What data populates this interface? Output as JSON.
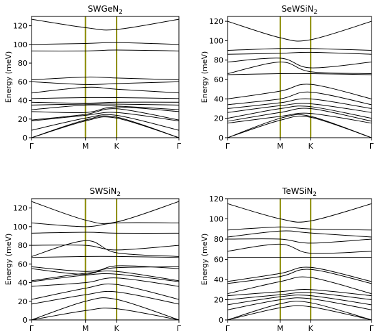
{
  "chart_data": [
    {
      "type": "line",
      "title": "SWGeN",
      "title_subscript": "2",
      "ylabel": "Energy (meV)",
      "ylim": [
        0,
        130
      ],
      "yticks": [
        0,
        20,
        40,
        60,
        80,
        100,
        120
      ],
      "xticklabels": [
        "Γ",
        "M",
        "K",
        "Γ"
      ],
      "x": [
        0,
        1,
        1.577,
        2.732
      ],
      "series": [
        {
          "values": [
            0,
            18,
            21,
            0
          ]
        },
        {
          "values": [
            0,
            19,
            22,
            0
          ]
        },
        {
          "values": [
            8,
            21,
            24,
            8
          ]
        },
        {
          "values": [
            18,
            24,
            27,
            18
          ]
        },
        {
          "values": [
            19,
            25,
            31,
            19
          ]
        },
        {
          "values": [
            28,
            27,
            33,
            28
          ]
        },
        {
          "values": [
            30,
            35,
            34,
            30
          ]
        },
        {
          "values": [
            35,
            36,
            36,
            35
          ]
        },
        {
          "values": [
            38,
            37,
            38,
            38
          ]
        },
        {
          "values": [
            42,
            43,
            43,
            42
          ]
        },
        {
          "values": [
            48,
            54,
            52,
            48
          ]
        },
        {
          "values": [
            60,
            57,
            58,
            60
          ]
        },
        {
          "values": [
            62,
            65,
            64,
            62
          ]
        },
        {
          "values": [
            93,
            93,
            94,
            93
          ]
        },
        {
          "values": [
            100,
            101,
            102,
            100
          ]
        },
        {
          "values": [
            127,
            118,
            116,
            127
          ]
        }
      ]
    },
    {
      "type": "line",
      "title": "SeWSiN",
      "title_subscript": "2",
      "ylabel": "Energy (meV)",
      "ylim": [
        0,
        125
      ],
      "yticks": [
        0,
        20,
        40,
        60,
        80,
        100,
        120
      ],
      "xticklabels": [
        "Γ",
        "M",
        "K",
        "Γ"
      ],
      "x": [
        0,
        1,
        1.577,
        2.732
      ],
      "series": [
        {
          "values": [
            0,
            18,
            21,
            0
          ]
        },
        {
          "values": [
            0,
            20,
            22,
            0
          ]
        },
        {
          "values": [
            15,
            22,
            25,
            15
          ]
        },
        {
          "values": [
            17,
            26,
            30,
            17
          ]
        },
        {
          "values": [
            20,
            30,
            32,
            20
          ]
        },
        {
          "values": [
            26,
            33,
            35,
            26
          ]
        },
        {
          "values": [
            30,
            36,
            40,
            30
          ]
        },
        {
          "values": [
            34,
            40,
            47,
            34
          ]
        },
        {
          "values": [
            40,
            48,
            55,
            40
          ]
        },
        {
          "values": [
            65,
            66,
            66,
            65
          ]
        },
        {
          "values": [
            66,
            78,
            68,
            66
          ]
        },
        {
          "values": [
            78,
            82,
            72,
            78
          ]
        },
        {
          "values": [
            86,
            87,
            88,
            86
          ]
        },
        {
          "values": [
            90,
            92,
            92,
            90
          ]
        },
        {
          "values": [
            120,
            103,
            101,
            120
          ]
        }
      ]
    },
    {
      "type": "line",
      "title": "SWSiN",
      "title_subscript": "2",
      "ylabel": "Energy (meV)",
      "ylim": [
        0,
        130
      ],
      "yticks": [
        0,
        20,
        40,
        60,
        80,
        100,
        120
      ],
      "xticklabels": [
        "Γ",
        "M",
        "K",
        "Γ"
      ],
      "x": [
        0,
        1,
        1.577,
        2.732
      ],
      "series": [
        {
          "values": [
            0,
            10,
            12,
            0
          ]
        },
        {
          "values": [
            0,
            20,
            22,
            0
          ]
        },
        {
          "values": [
            17,
            27,
            30,
            17
          ]
        },
        {
          "values": [
            22,
            34,
            38,
            22
          ]
        },
        {
          "values": [
            36,
            40,
            45,
            36
          ]
        },
        {
          "values": [
            41,
            48,
            49,
            41
          ]
        },
        {
          "values": [
            42,
            50,
            52,
            42
          ]
        },
        {
          "values": [
            55,
            49,
            58,
            55
          ]
        },
        {
          "values": [
            57,
            52,
            56,
            57
          ]
        },
        {
          "values": [
            67,
            68,
            68,
            67
          ]
        },
        {
          "values": [
            68,
            85,
            72,
            68
          ]
        },
        {
          "values": [
            80,
            80,
            75,
            80
          ]
        },
        {
          "values": [
            93,
            94,
            93,
            93
          ]
        },
        {
          "values": [
            104,
            100,
            104,
            104
          ]
        },
        {
          "values": [
            127,
            107,
            105,
            127
          ]
        }
      ]
    },
    {
      "type": "line",
      "title": "TeWSiN",
      "title_subscript": "2",
      "ylabel": "Energy (meV)",
      "ylim": [
        0,
        120
      ],
      "yticks": [
        0,
        20,
        40,
        60,
        80,
        100,
        120
      ],
      "xticklabels": [
        "Γ",
        "M",
        "K",
        "Γ"
      ],
      "x": [
        0,
        1,
        1.577,
        2.732
      ],
      "series": [
        {
          "values": [
            0,
            12,
            13,
            0
          ]
        },
        {
          "values": [
            0,
            16,
            17,
            0
          ]
        },
        {
          "values": [
            10,
            20,
            21,
            10
          ]
        },
        {
          "values": [
            15,
            23,
            24,
            15
          ]
        },
        {
          "values": [
            20,
            25,
            27,
            20
          ]
        },
        {
          "values": [
            24,
            28,
            30,
            24
          ]
        },
        {
          "values": [
            26,
            38,
            42,
            26
          ]
        },
        {
          "values": [
            36,
            43,
            50,
            36
          ]
        },
        {
          "values": [
            38,
            46,
            52,
            38
          ]
        },
        {
          "values": [
            62,
            62,
            62,
            62
          ]
        },
        {
          "values": [
            68,
            75,
            66,
            68
          ]
        },
        {
          "values": [
            80,
            80,
            76,
            80
          ]
        },
        {
          "values": [
            82,
            88,
            86,
            82
          ]
        },
        {
          "values": [
            89,
            92,
            90,
            89
          ]
        },
        {
          "values": [
            115,
            100,
            98,
            115
          ]
        }
      ]
    }
  ]
}
